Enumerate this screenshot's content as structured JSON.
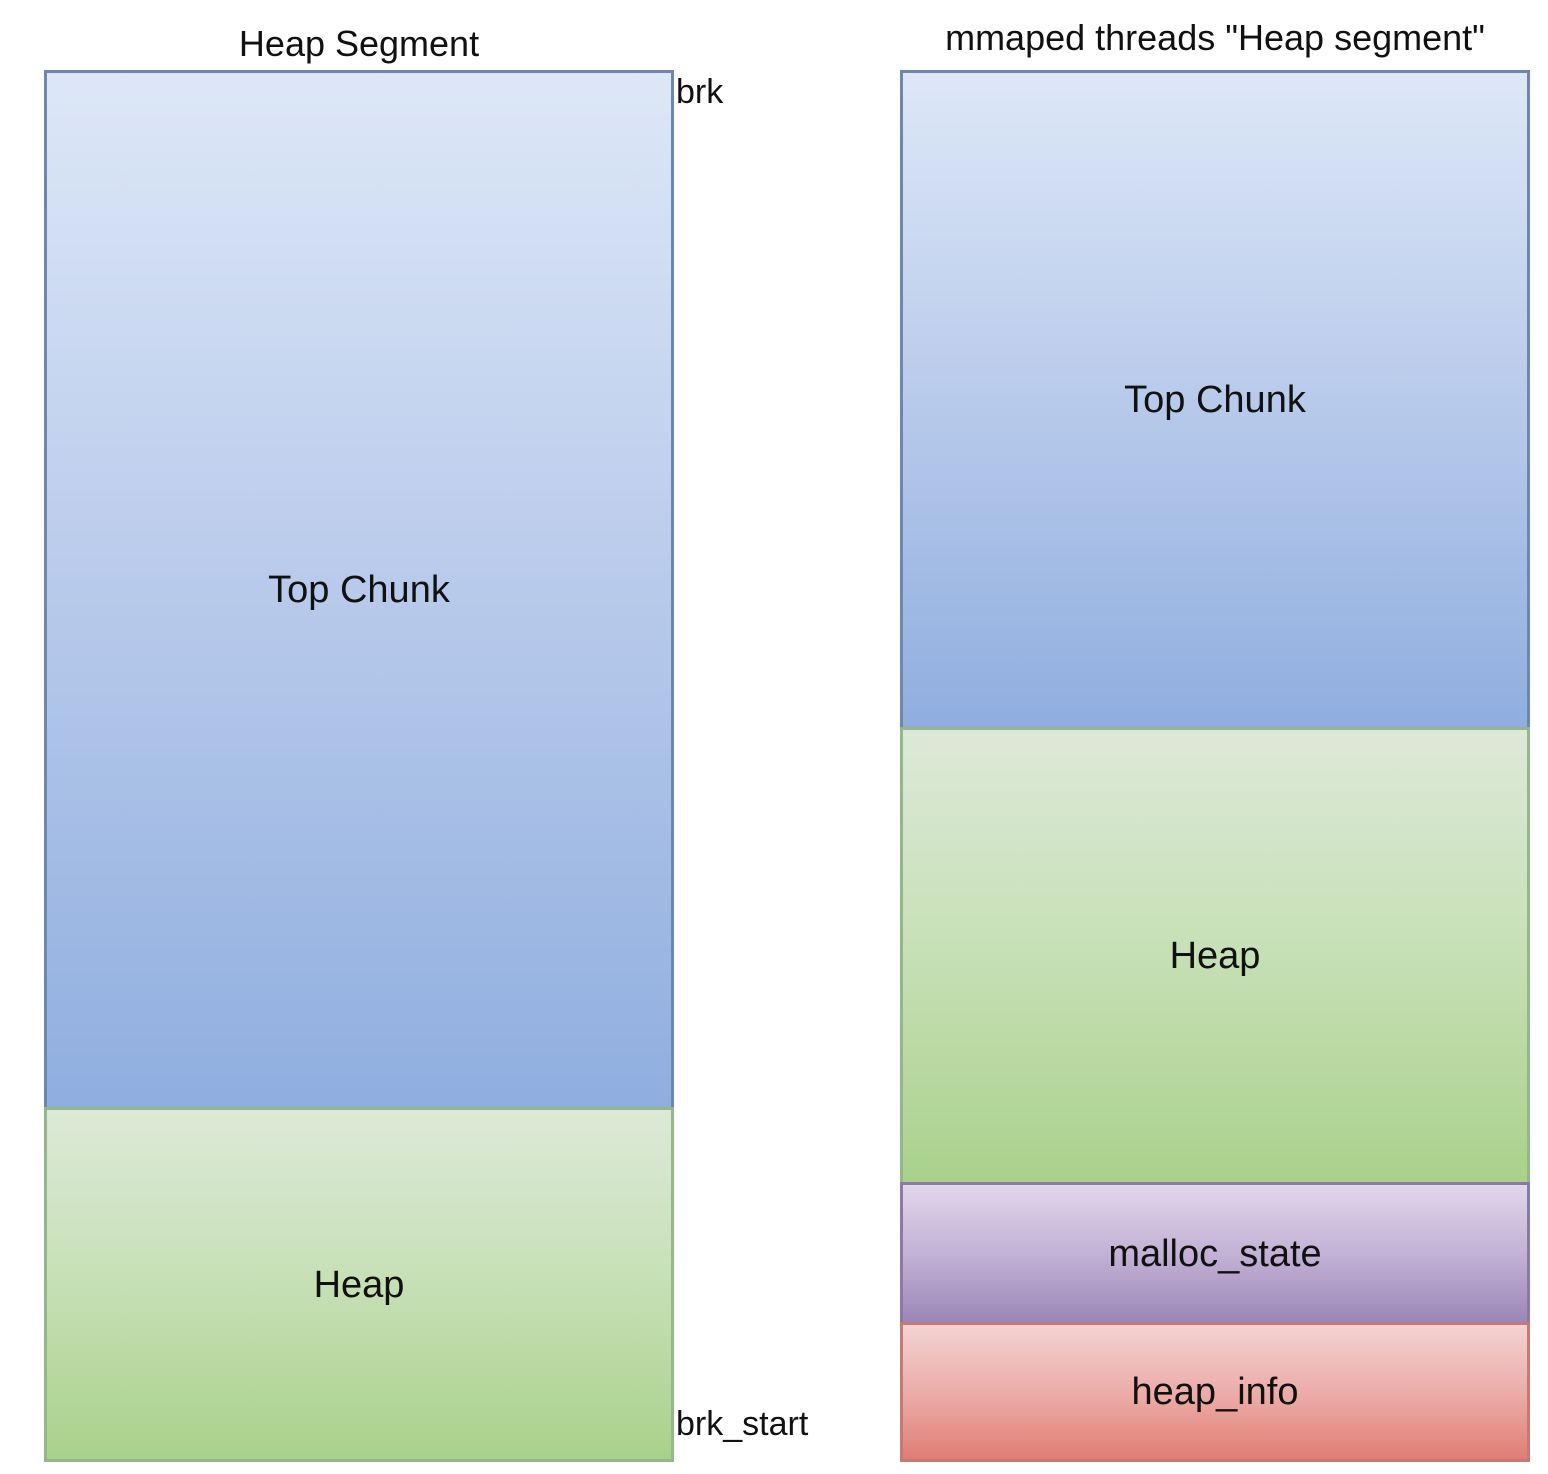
{
  "left_diagram": {
    "title": "Heap Segment",
    "blocks": {
      "top_chunk": "Top Chunk",
      "heap": "Heap"
    },
    "markers": {
      "brk": "brk",
      "brk_start": "brk_start"
    }
  },
  "right_diagram": {
    "title": "mmaped threads \"Heap segment\"",
    "blocks": {
      "top_chunk": "Top Chunk",
      "heap": "Heap",
      "malloc_state": "malloc_state",
      "heap_info": "heap_info"
    }
  },
  "colors": {
    "top_chunk": "#a9c0e6",
    "heap": "#c6dfb4",
    "malloc_state": "#b8a6cd",
    "heap_info": "#e99b95"
  }
}
